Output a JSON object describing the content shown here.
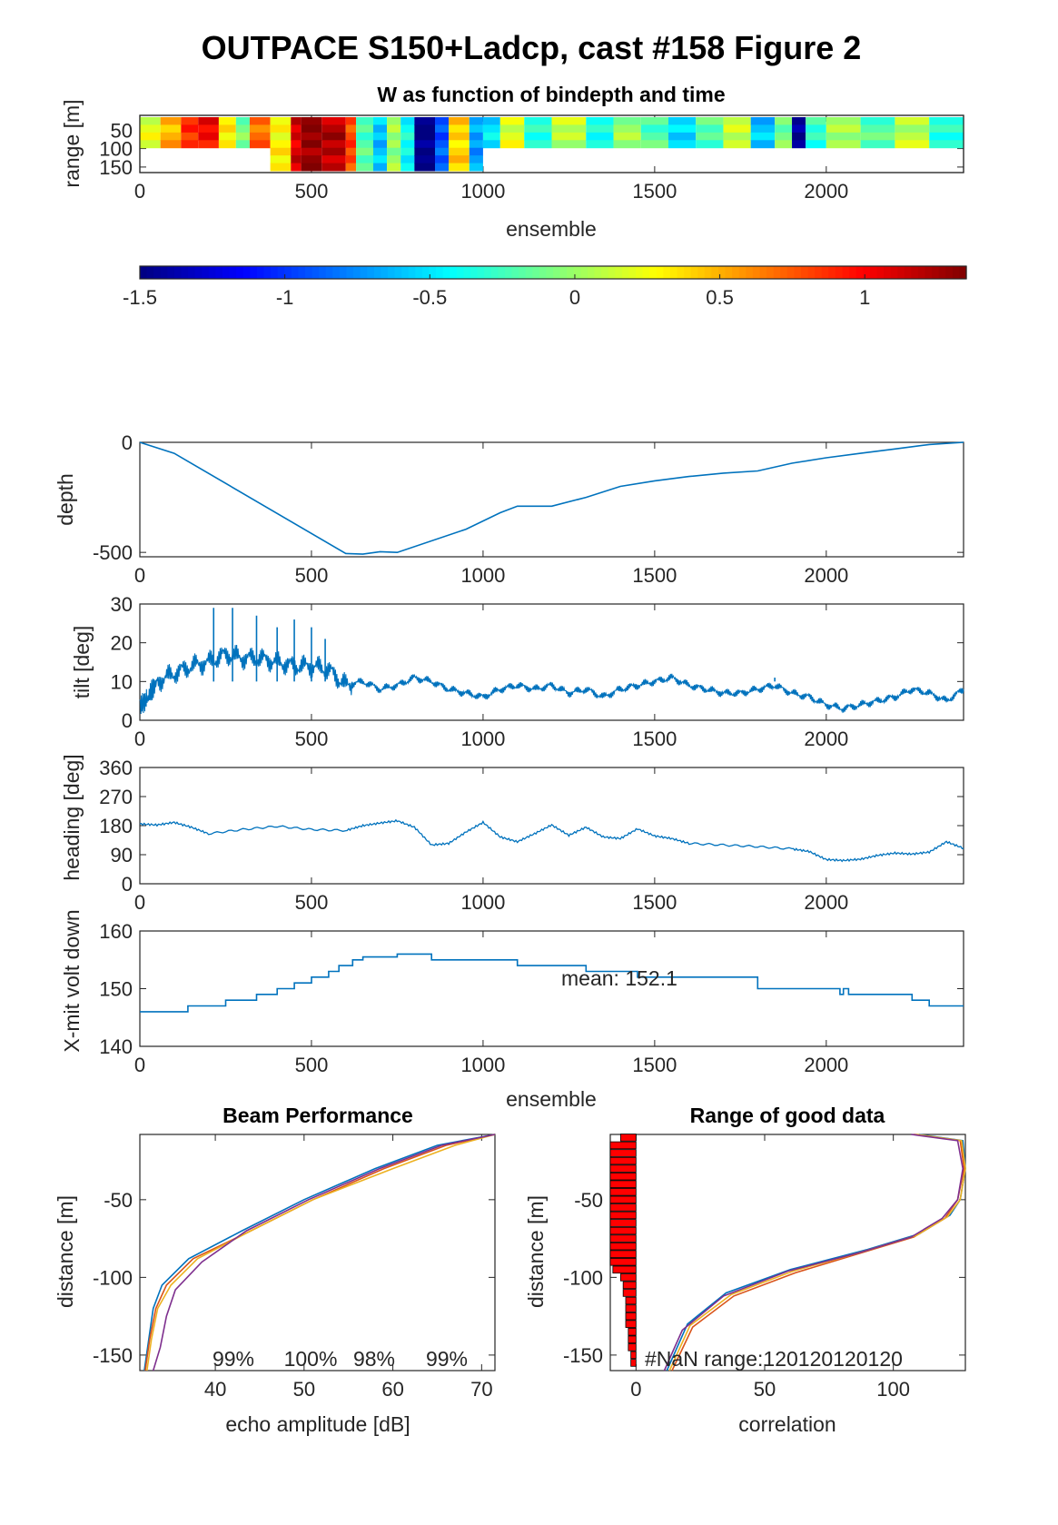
{
  "figure": {
    "title": "OUTPACE S150+Ladcp, cast #158 Figure 2"
  },
  "chart_data": [
    {
      "id": "w-image",
      "type": "heatmap",
      "title": "W as function of bindepth and time",
      "xlabel": "ensemble",
      "ylabel": "range [m]",
      "xlim": [
        0,
        2400
      ],
      "ylim": [
        10,
        165
      ],
      "xticks": [
        "0",
        "500",
        "1000",
        "1500",
        "2000"
      ],
      "yticks": [
        "50",
        "100",
        "150"
      ],
      "segments": [
        {
          "x0": 0,
          "x1": 60,
          "w": 0.2
        },
        {
          "x0": 60,
          "x1": 120,
          "w": 0.5
        },
        {
          "x0": 120,
          "x1": 170,
          "w": 0.9
        },
        {
          "x0": 170,
          "x1": 230,
          "w": 1.0
        },
        {
          "x0": 230,
          "x1": 280,
          "w": 0.3
        },
        {
          "x0": 280,
          "x1": 320,
          "w": -0.1
        },
        {
          "x0": 320,
          "x1": 380,
          "w": 0.7
        },
        {
          "x0": 380,
          "x1": 440,
          "w": 0.3
        },
        {
          "x0": 440,
          "x1": 470,
          "w": 1.1
        },
        {
          "x0": 470,
          "x1": 530,
          "w": 1.3
        },
        {
          "x0": 530,
          "x1": 600,
          "w": 1.2
        },
        {
          "x0": 600,
          "x1": 630,
          "w": 0.8
        },
        {
          "x0": 630,
          "x1": 680,
          "w": -0.2
        },
        {
          "x0": 680,
          "x1": 720,
          "w": -0.6
        },
        {
          "x0": 720,
          "x1": 760,
          "w": 0.0
        },
        {
          "x0": 760,
          "x1": 800,
          "w": -0.4
        },
        {
          "x0": 800,
          "x1": 860,
          "w": -1.5
        },
        {
          "x0": 860,
          "x1": 900,
          "w": -0.9
        },
        {
          "x0": 900,
          "x1": 960,
          "w": 0.4
        },
        {
          "x0": 960,
          "x1": 1000,
          "w": -0.7
        },
        {
          "x0": 1000,
          "x1": 1050,
          "w": -0.5
        },
        {
          "x0": 1050,
          "x1": 1120,
          "w": 0.2
        },
        {
          "x0": 1120,
          "x1": 1200,
          "w": -0.3
        },
        {
          "x0": 1200,
          "x1": 1300,
          "w": 0.1
        },
        {
          "x0": 1300,
          "x1": 1380,
          "w": -0.4
        },
        {
          "x0": 1380,
          "x1": 1460,
          "w": 0.0
        },
        {
          "x0": 1460,
          "x1": 1540,
          "w": -0.2
        },
        {
          "x0": 1540,
          "x1": 1620,
          "w": -0.5
        },
        {
          "x0": 1620,
          "x1": 1700,
          "w": -0.2
        },
        {
          "x0": 1700,
          "x1": 1780,
          "w": 0.1
        },
        {
          "x0": 1780,
          "x1": 1850,
          "w": -0.6
        },
        {
          "x0": 1850,
          "x1": 1900,
          "w": -0.1
        },
        {
          "x0": 1900,
          "x1": 1940,
          "w": -1.4
        },
        {
          "x0": 1940,
          "x1": 2000,
          "w": -0.3
        },
        {
          "x0": 2000,
          "x1": 2100,
          "w": 0.0
        },
        {
          "x0": 2100,
          "x1": 2200,
          "w": -0.2
        },
        {
          "x0": 2200,
          "x1": 2300,
          "w": 0.1
        },
        {
          "x0": 2300,
          "x1": 2400,
          "w": -0.3
        }
      ],
      "colormap": "jet"
    },
    {
      "id": "colorbar",
      "type": "heatmap",
      "clim": [
        -1.5,
        1.35
      ],
      "ticks": [
        "-1.5",
        "-1",
        "-0.5",
        "0",
        "0.5",
        "1"
      ]
    },
    {
      "id": "depth",
      "type": "line",
      "ylabel": "depth",
      "xlim": [
        0,
        2400
      ],
      "ylim": [
        -520,
        0
      ],
      "xticks": [
        "0",
        "500",
        "1000",
        "1500",
        "2000"
      ],
      "yticks": [
        "0",
        "-500"
      ],
      "x": [
        0,
        100,
        600,
        650,
        700,
        750,
        950,
        1050,
        1100,
        1200,
        1300,
        1400,
        1500,
        1600,
        1700,
        1800,
        1900,
        2000,
        2100,
        2200,
        2300,
        2400
      ],
      "y": [
        0,
        -50,
        -505,
        -508,
        -497,
        -500,
        -395,
        -320,
        -290,
        -290,
        -250,
        -200,
        -175,
        -155,
        -140,
        -130,
        -95,
        -70,
        -50,
        -30,
        -10,
        0
      ]
    },
    {
      "id": "tilt",
      "type": "line",
      "ylabel": "tilt [deg]",
      "xlim": [
        0,
        2400
      ],
      "ylim": [
        0,
        30
      ],
      "xticks": [
        "0",
        "500",
        "1000",
        "1500",
        "2000"
      ],
      "yticks": [
        "0",
        "10",
        "20",
        "30"
      ],
      "x": [
        0,
        20,
        50,
        100,
        150,
        200,
        250,
        300,
        350,
        400,
        450,
        500,
        550,
        600,
        650,
        700,
        750,
        800,
        850,
        900,
        950,
        1000,
        1050,
        1100,
        1150,
        1200,
        1250,
        1300,
        1350,
        1400,
        1450,
        1500,
        1550,
        1600,
        1650,
        1700,
        1750,
        1800,
        1850,
        1900,
        1950,
        2000,
        2050,
        2100,
        2150,
        2200,
        2250,
        2300,
        2350,
        2400
      ],
      "y": [
        4,
        5,
        10,
        12,
        14,
        15,
        17,
        16,
        16,
        15,
        14,
        14,
        13,
        9,
        10,
        8,
        9,
        11,
        10,
        8,
        7,
        6,
        8,
        9,
        8,
        9,
        7,
        8,
        6,
        8,
        9,
        10,
        11,
        9,
        8,
        7,
        7,
        8,
        9,
        7,
        6,
        4,
        3,
        4,
        5,
        6,
        8,
        7,
        5,
        8
      ],
      "peaks": [
        {
          "x": 215,
          "y": 29
        },
        {
          "x": 270,
          "y": 29
        },
        {
          "x": 340,
          "y": 27
        },
        {
          "x": 400,
          "y": 24
        },
        {
          "x": 450,
          "y": 26
        },
        {
          "x": 500,
          "y": 24
        },
        {
          "x": 540,
          "y": 21
        },
        {
          "x": 1850,
          "y": 11
        }
      ]
    },
    {
      "id": "heading",
      "type": "line",
      "ylabel": "heading [deg]",
      "xlim": [
        0,
        2400
      ],
      "ylim": [
        0,
        360
      ],
      "xticks": [
        "0",
        "500",
        "1000",
        "1500",
        "2000"
      ],
      "yticks": [
        "0",
        "90",
        "180",
        "270",
        "360"
      ],
      "x": [
        0,
        50,
        100,
        150,
        200,
        300,
        400,
        500,
        600,
        650,
        700,
        750,
        800,
        850,
        900,
        950,
        1000,
        1050,
        1100,
        1150,
        1200,
        1250,
        1300,
        1350,
        1400,
        1450,
        1500,
        1550,
        1600,
        1700,
        1800,
        1900,
        1950,
        2000,
        2050,
        2100,
        2150,
        2200,
        2250,
        2300,
        2350,
        2400
      ],
      "y": [
        185,
        182,
        190,
        175,
        155,
        168,
        178,
        168,
        165,
        180,
        188,
        195,
        175,
        120,
        125,
        160,
        190,
        145,
        130,
        155,
        182,
        150,
        175,
        145,
        140,
        170,
        148,
        140,
        125,
        120,
        115,
        108,
        100,
        75,
        72,
        76,
        88,
        95,
        92,
        98,
        130,
        110
      ]
    },
    {
      "id": "xmit-volt",
      "type": "line",
      "ylabel": "X-mit volt down",
      "xlabel": "ensemble",
      "xlim": [
        0,
        2400
      ],
      "ylim": [
        140,
        160
      ],
      "xticks": [
        "0",
        "500",
        "1000",
        "1500",
        "2000"
      ],
      "yticks": [
        "140",
        "150",
        "160"
      ],
      "annotation": "mean: 152.1",
      "x": [
        0,
        140,
        250,
        340,
        400,
        450,
        500,
        550,
        580,
        620,
        650,
        750,
        850,
        1100,
        1300,
        1450,
        1800,
        2040,
        2050,
        2065,
        2080,
        2100,
        2250,
        2300,
        2400
      ],
      "y": [
        146,
        147,
        148,
        149,
        150,
        151,
        152,
        153,
        154,
        155,
        155.5,
        156,
        155,
        154,
        153,
        152,
        150,
        149,
        150,
        149,
        149,
        149,
        148,
        147,
        147
      ]
    },
    {
      "id": "beam-performance",
      "type": "line",
      "title": "Beam Performance",
      "xlabel": "echo amplitude [dB]",
      "ylabel": "distance [m]",
      "xlim": [
        31.5,
        71.5
      ],
      "ylim": [
        -160,
        -8
      ],
      "xticks": [
        "40",
        "50",
        "60",
        "70"
      ],
      "yticks": [
        "-50",
        "-100",
        "-150"
      ],
      "annotations": [
        "99%",
        "100%",
        "98%",
        "99%"
      ],
      "series": [
        {
          "color": "#0072bd",
          "x": [
            71.5,
            65,
            58,
            50,
            43,
            37,
            34,
            33,
            32.5,
            32
          ],
          "y": [
            -8,
            -15,
            -30,
            -50,
            -70,
            -88,
            -105,
            -120,
            -140,
            -160
          ]
        },
        {
          "color": "#d95319",
          "x": [
            71.5,
            66,
            59,
            51,
            44,
            37.5,
            34.5,
            33.3,
            32.6,
            32.1
          ],
          "y": [
            -8,
            -15,
            -30,
            -50,
            -70,
            -88,
            -105,
            -120,
            -140,
            -160
          ]
        },
        {
          "color": "#edb120",
          "x": [
            71.5,
            67,
            60,
            51,
            44,
            38,
            35,
            33.5,
            32.8,
            32.3
          ],
          "y": [
            -8,
            -15,
            -30,
            -50,
            -70,
            -88,
            -105,
            -120,
            -140,
            -160
          ]
        },
        {
          "color": "#7e2f8e",
          "x": [
            71.5,
            65.5,
            58.5,
            50.5,
            43.5,
            38.5,
            35.5,
            34.5,
            33.8,
            33
          ],
          "y": [
            -8,
            -15,
            -30,
            -50,
            -70,
            -90,
            -108,
            -125,
            -145,
            -160
          ]
        }
      ]
    },
    {
      "id": "range-good-data",
      "type": "line",
      "title": "Range of good data",
      "xlabel": "correlation",
      "ylabel": "distance [m]",
      "xlim": [
        -10,
        128
      ],
      "ylim": [
        -160,
        -8
      ],
      "xticks": [
        "0",
        "50",
        "100"
      ],
      "yticks": [
        "-50",
        "-100",
        "-150"
      ],
      "annotation": "#NaN range:120120120120",
      "bars": {
        "y": [
          -10,
          -15,
          -20,
          -25,
          -30,
          -35,
          -40,
          -45,
          -50,
          -55,
          -60,
          -65,
          -70,
          -75,
          -80,
          -85,
          -90,
          -95,
          -100,
          -105,
          -110,
          -115,
          -120,
          -125,
          -130,
          -135,
          -140,
          -145,
          -150,
          -155
        ],
        "v": [
          6,
          10,
          10,
          10,
          10,
          10,
          10,
          10,
          10,
          10,
          10,
          10,
          10,
          10,
          10,
          10,
          10,
          9,
          6,
          5,
          5,
          4,
          4,
          4,
          4,
          3,
          3,
          3,
          2,
          2
        ]
      },
      "series": [
        {
          "color": "#0072bd",
          "x": [
            110,
            127,
            128,
            126,
            122,
            110,
            90,
            60,
            35,
            20,
            12
          ],
          "y": [
            -8,
            -12,
            -30,
            -50,
            -60,
            -72,
            -82,
            -95,
            -110,
            -130,
            -160
          ]
        },
        {
          "color": "#d95319",
          "x": [
            108,
            126,
            127.5,
            125,
            120,
            108,
            88,
            62,
            38,
            22,
            14
          ],
          "y": [
            -8,
            -12,
            -30,
            -50,
            -62,
            -74,
            -84,
            -97,
            -112,
            -132,
            -160
          ]
        },
        {
          "color": "#edb120",
          "x": [
            109,
            126.5,
            128,
            126,
            121,
            109,
            89,
            61,
            37,
            21,
            13
          ],
          "y": [
            -8,
            -12,
            -30,
            -50,
            -61,
            -73,
            -83,
            -96,
            -111,
            -131,
            -160
          ]
        },
        {
          "color": "#7e2f8e",
          "x": [
            107,
            125,
            127,
            125,
            119,
            107,
            87,
            59,
            34,
            18,
            11
          ],
          "y": [
            -8,
            -12,
            -30,
            -50,
            -62,
            -74,
            -84,
            -96,
            -112,
            -134,
            -160
          ]
        }
      ]
    }
  ]
}
